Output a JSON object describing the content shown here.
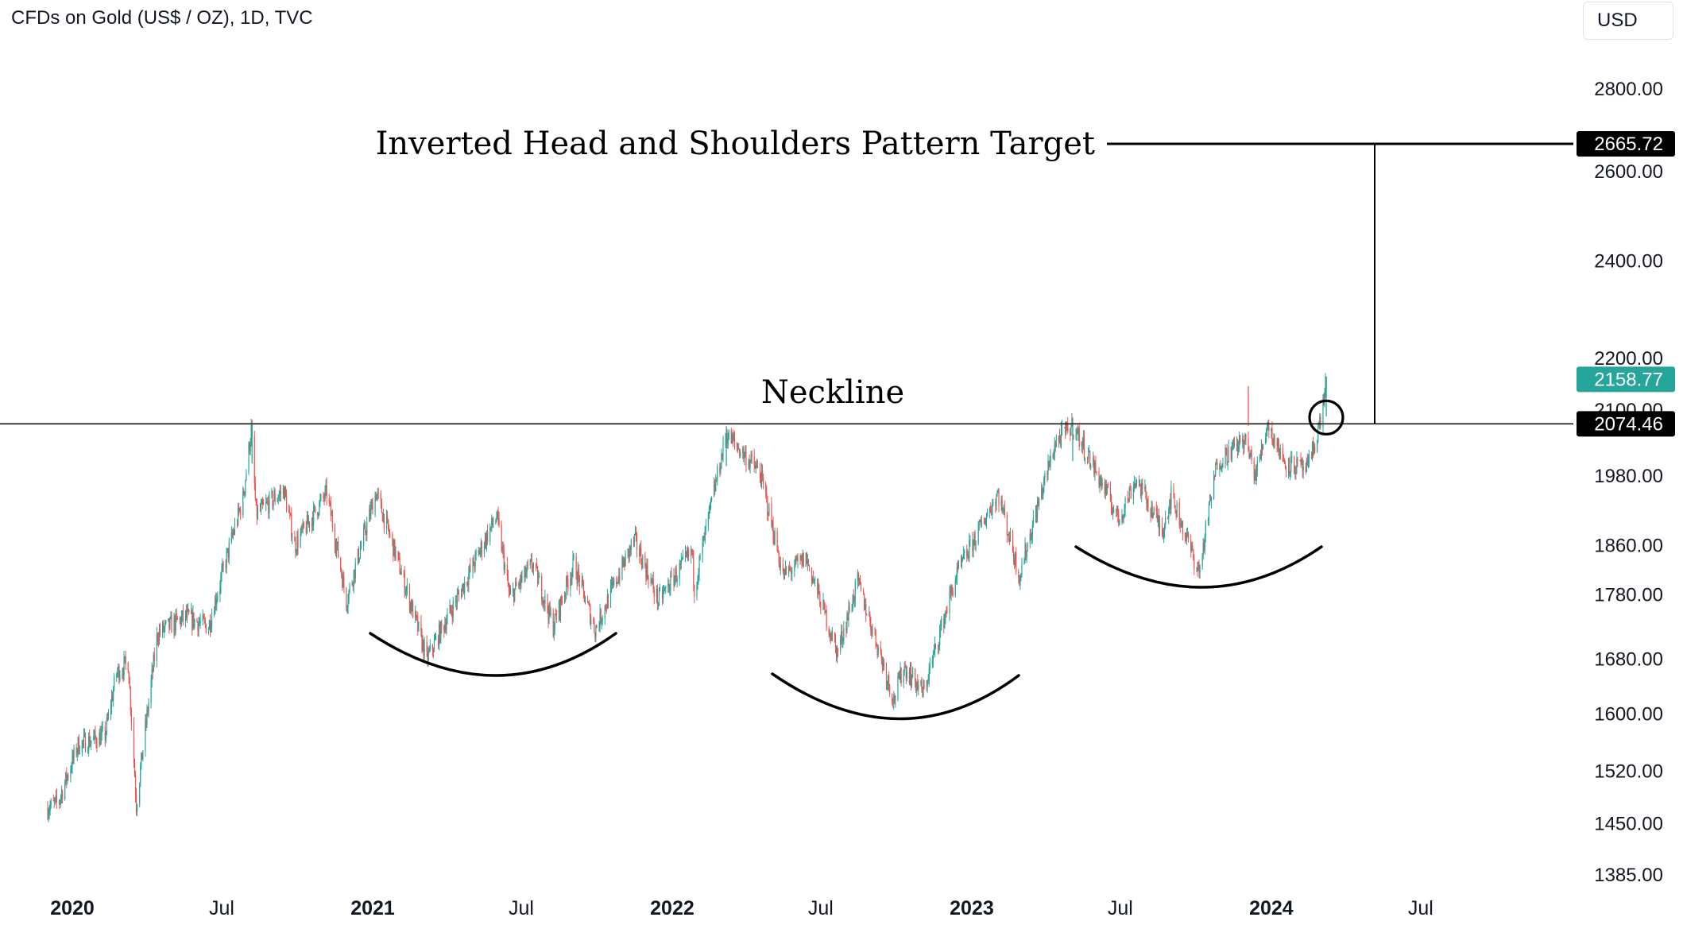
{
  "header": {
    "symbol_title": "CFDs on Gold (US$ / OZ), 1D, TVC",
    "currency_button": "USD"
  },
  "colors": {
    "up": "#26a69a",
    "down": "#ef5350",
    "line": "#000000",
    "target_box": "#000000",
    "last_price_box": "#26a69a"
  },
  "annotations": {
    "target_label": "Inverted Head and Shoulders Pattern Target",
    "neckline_label": "Neckline"
  },
  "price_labels": {
    "target": "2665.72",
    "last": "2158.77",
    "neckline": "2074.46"
  },
  "chart_data": {
    "type": "candlestick",
    "title": "CFDs on Gold (US$ / OZ), 1D, TVC",
    "y_scale": "log",
    "ylim": [
      1370,
      2960
    ],
    "xlim": [
      "2019-12-01",
      "2024-09-01"
    ],
    "y_ticks": [
      "2800.00",
      "2600.00",
      "2400.00",
      "2200.00",
      "2100.00",
      "1980.00",
      "1860.00",
      "1780.00",
      "1680.00",
      "1600.00",
      "1520.00",
      "1450.00",
      "1385.00"
    ],
    "x_ticks": [
      {
        "label": "2020",
        "date": "2020-01-01",
        "bold": true
      },
      {
        "label": "Jul",
        "date": "2020-07-01",
        "bold": false
      },
      {
        "label": "2021",
        "date": "2021-01-01",
        "bold": true
      },
      {
        "label": "Jul",
        "date": "2021-07-01",
        "bold": false
      },
      {
        "label": "2022",
        "date": "2022-01-01",
        "bold": true
      },
      {
        "label": "Jul",
        "date": "2022-07-01",
        "bold": false
      },
      {
        "label": "2023",
        "date": "2023-01-01",
        "bold": true
      },
      {
        "label": "Jul",
        "date": "2023-07-01",
        "bold": false
      },
      {
        "label": "2024",
        "date": "2024-01-01",
        "bold": true
      },
      {
        "label": "Jul",
        "date": "2024-07-01",
        "bold": false
      }
    ],
    "close_path": [
      [
        "2019-12-01",
        1470
      ],
      [
        "2019-12-15",
        1478
      ],
      [
        "2020-01-08",
        1556
      ],
      [
        "2020-02-10",
        1570
      ],
      [
        "2020-02-24",
        1660
      ],
      [
        "2020-03-09",
        1675
      ],
      [
        "2020-03-19",
        1475
      ],
      [
        "2020-04-14",
        1720
      ],
      [
        "2020-05-18",
        1745
      ],
      [
        "2020-06-15",
        1730
      ],
      [
        "2020-07-27",
        1940
      ],
      [
        "2020-08-06",
        2063
      ],
      [
        "2020-08-12",
        1912
      ],
      [
        "2020-09-15",
        1955
      ],
      [
        "2020-09-28",
        1860
      ],
      [
        "2020-11-06",
        1950
      ],
      [
        "2020-11-30",
        1770
      ],
      [
        "2021-01-05",
        1950
      ],
      [
        "2021-03-08",
        1680
      ],
      [
        "2021-04-20",
        1790
      ],
      [
        "2021-06-01",
        1910
      ],
      [
        "2021-06-17",
        1775
      ],
      [
        "2021-07-15",
        1830
      ],
      [
        "2021-08-09",
        1730
      ],
      [
        "2021-09-03",
        1830
      ],
      [
        "2021-09-29",
        1725
      ],
      [
        "2021-11-16",
        1870
      ],
      [
        "2021-12-15",
        1770
      ],
      [
        "2022-01-25",
        1850
      ],
      [
        "2022-01-28",
        1790
      ],
      [
        "2022-03-08",
        2055
      ],
      [
        "2022-04-18",
        1985
      ],
      [
        "2022-05-16",
        1810
      ],
      [
        "2022-06-13",
        1840
      ],
      [
        "2022-07-21",
        1690
      ],
      [
        "2022-08-15",
        1800
      ],
      [
        "2022-09-28",
        1620
      ],
      [
        "2022-10-10",
        1670
      ],
      [
        "2022-11-03",
        1630
      ],
      [
        "2022-12-13",
        1810
      ],
      [
        "2023-02-02",
        1950
      ],
      [
        "2023-02-28",
        1810
      ],
      [
        "2023-04-13",
        2040
      ],
      [
        "2023-05-04",
        2072
      ],
      [
        "2023-06-29",
        1905
      ],
      [
        "2023-07-20",
        1975
      ],
      [
        "2023-08-21",
        1885
      ],
      [
        "2023-09-01",
        1945
      ],
      [
        "2023-10-05",
        1815
      ],
      [
        "2023-10-27",
        2005
      ],
      [
        "2023-11-29",
        2045
      ],
      [
        "2023-12-04",
        2025
      ],
      [
        "2023-12-13",
        1980
      ],
      [
        "2023-12-27",
        2075
      ],
      [
        "2024-01-17",
        2005
      ],
      [
        "2024-02-14",
        1990
      ],
      [
        "2024-03-01",
        2080
      ],
      [
        "2024-03-08",
        2158.77
      ]
    ],
    "horizontal_lines": [
      {
        "label": "Neckline",
        "value": 2074.46
      },
      {
        "label": "Inverted Head and Shoulders Pattern Target",
        "value": 2665.72
      }
    ],
    "last_price": 2158.77,
    "grid": false,
    "legend": "none"
  }
}
